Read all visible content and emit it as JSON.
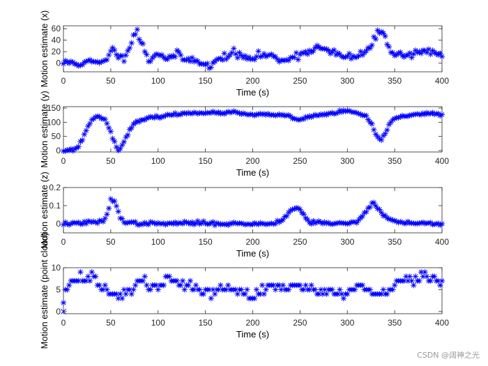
{
  "watermark": "CSDN @阔神之光",
  "colors": {
    "marker": "#0000ff",
    "axis": "#262626",
    "background": "#ffffff"
  },
  "chart_data": [
    {
      "type": "scatter",
      "marker": "asterisk",
      "xlabel": "Time (s)",
      "ylabel": "Motion estimate (x)",
      "xlim": [
        0,
        400
      ],
      "ylim": [
        -15,
        65
      ],
      "xticks": [
        0,
        50,
        100,
        150,
        200,
        250,
        300,
        350,
        400
      ],
      "yticks": [
        0,
        20,
        40,
        60
      ],
      "grid": false,
      "keypoints": [
        [
          0,
          0
        ],
        [
          10,
          2
        ],
        [
          20,
          -2
        ],
        [
          30,
          3
        ],
        [
          40,
          -1
        ],
        [
          45,
          5
        ],
        [
          50,
          25
        ],
        [
          55,
          20
        ],
        [
          60,
          8
        ],
        [
          65,
          12
        ],
        [
          70,
          32
        ],
        [
          75,
          50
        ],
        [
          78,
          58
        ],
        [
          80,
          45
        ],
        [
          85,
          25
        ],
        [
          90,
          5
        ],
        [
          95,
          12
        ],
        [
          100,
          18
        ],
        [
          110,
          8
        ],
        [
          120,
          15
        ],
        [
          130,
          5
        ],
        [
          140,
          8
        ],
        [
          150,
          -3
        ],
        [
          155,
          -8
        ],
        [
          160,
          2
        ],
        [
          170,
          12
        ],
        [
          180,
          18
        ],
        [
          190,
          10
        ],
        [
          200,
          8
        ],
        [
          210,
          15
        ],
        [
          220,
          12
        ],
        [
          230,
          5
        ],
        [
          240,
          10
        ],
        [
          250,
          15
        ],
        [
          260,
          22
        ],
        [
          270,
          28
        ],
        [
          280,
          20
        ],
        [
          290,
          15
        ],
        [
          300,
          10
        ],
        [
          310,
          12
        ],
        [
          320,
          20
        ],
        [
          325,
          30
        ],
        [
          330,
          45
        ],
        [
          335,
          58
        ],
        [
          340,
          45
        ],
        [
          345,
          25
        ],
        [
          350,
          18
        ],
        [
          360,
          12
        ],
        [
          370,
          18
        ],
        [
          380,
          22
        ],
        [
          390,
          18
        ],
        [
          400,
          15
        ]
      ],
      "noise": 7,
      "seed": 11
    },
    {
      "type": "scatter",
      "marker": "asterisk",
      "xlabel": "Time (s)",
      "ylabel": "Motion estimate (y)",
      "xlim": [
        0,
        400
      ],
      "ylim": [
        -5,
        155
      ],
      "xticks": [
        0,
        50,
        100,
        150,
        200,
        250,
        300,
        350,
        400
      ],
      "yticks": [
        0,
        50,
        100,
        150
      ],
      "grid": false,
      "keypoints": [
        [
          0,
          0
        ],
        [
          10,
          3
        ],
        [
          15,
          10
        ],
        [
          20,
          40
        ],
        [
          25,
          80
        ],
        [
          30,
          110
        ],
        [
          35,
          118
        ],
        [
          40,
          118
        ],
        [
          45,
          108
        ],
        [
          50,
          65
        ],
        [
          55,
          20
        ],
        [
          58,
          3
        ],
        [
          62,
          15
        ],
        [
          65,
          40
        ],
        [
          70,
          75
        ],
        [
          75,
          95
        ],
        [
          85,
          110
        ],
        [
          100,
          120
        ],
        [
          120,
          128
        ],
        [
          140,
          135
        ],
        [
          160,
          132
        ],
        [
          180,
          135
        ],
        [
          200,
          125
        ],
        [
          220,
          128
        ],
        [
          240,
          120
        ],
        [
          245,
          110
        ],
        [
          250,
          108
        ],
        [
          260,
          120
        ],
        [
          280,
          130
        ],
        [
          300,
          140
        ],
        [
          310,
          132
        ],
        [
          320,
          120
        ],
        [
          325,
          95
        ],
        [
          330,
          55
        ],
        [
          335,
          35
        ],
        [
          340,
          60
        ],
        [
          345,
          100
        ],
        [
          355,
          120
        ],
        [
          370,
          128
        ],
        [
          385,
          130
        ],
        [
          400,
          128
        ]
      ],
      "noise": 5,
      "seed": 23
    },
    {
      "type": "scatter",
      "marker": "asterisk",
      "xlabel": "Time (s)",
      "ylabel": "Motion estimate (z)",
      "xlim": [
        0,
        400
      ],
      "ylim": [
        -0.05,
        0.2
      ],
      "xticks": [
        0,
        50,
        100,
        150,
        200,
        250,
        300,
        350,
        400
      ],
      "yticks": [
        0,
        0.1,
        0.2
      ],
      "grid": false,
      "keypoints": [
        [
          0,
          0
        ],
        [
          20,
          0.005
        ],
        [
          40,
          0.01
        ],
        [
          45,
          0.03
        ],
        [
          50,
          0.13
        ],
        [
          55,
          0.12
        ],
        [
          60,
          0.04
        ],
        [
          65,
          0.005
        ],
        [
          100,
          0.0
        ],
        [
          140,
          0.005
        ],
        [
          180,
          0.0
        ],
        [
          200,
          0.0
        ],
        [
          220,
          0.0
        ],
        [
          230,
          0.02
        ],
        [
          240,
          0.07
        ],
        [
          245,
          0.09
        ],
        [
          250,
          0.08
        ],
        [
          255,
          0.04
        ],
        [
          260,
          0.01
        ],
        [
          300,
          0.0
        ],
        [
          310,
          0.01
        ],
        [
          320,
          0.07
        ],
        [
          328,
          0.12
        ],
        [
          335,
          0.07
        ],
        [
          345,
          0.02
        ],
        [
          360,
          0.005
        ],
        [
          400,
          0.0
        ]
      ],
      "noise": 0.01,
      "seed": 37
    },
    {
      "type": "scatter",
      "marker": "asterisk",
      "xlabel": "Time (s)",
      "ylabel": "Motion estimate (point cloud)",
      "xlim": [
        0,
        400
      ],
      "ylim": [
        -0.5,
        10
      ],
      "xticks": [
        0,
        50,
        100,
        150,
        200,
        250,
        300,
        350,
        400
      ],
      "yticks": [
        0,
        5,
        10
      ],
      "grid": false,
      "keypoints": [
        [
          0,
          3
        ],
        [
          5,
          6
        ],
        [
          20,
          7
        ],
        [
          30,
          8
        ],
        [
          40,
          6
        ],
        [
          50,
          4
        ],
        [
          60,
          4
        ],
        [
          70,
          5
        ],
        [
          80,
          7
        ],
        [
          90,
          6
        ],
        [
          100,
          5
        ],
        [
          110,
          8
        ],
        [
          120,
          7
        ],
        [
          130,
          6
        ],
        [
          140,
          5
        ],
        [
          150,
          5
        ],
        [
          160,
          4
        ],
        [
          170,
          6
        ],
        [
          180,
          5
        ],
        [
          190,
          4
        ],
        [
          200,
          3
        ],
        [
          210,
          5
        ],
        [
          220,
          6
        ],
        [
          230,
          5
        ],
        [
          240,
          6
        ],
        [
          250,
          6
        ],
        [
          260,
          5
        ],
        [
          270,
          4
        ],
        [
          280,
          5
        ],
        [
          290,
          4
        ],
        [
          300,
          4
        ],
        [
          310,
          6
        ],
        [
          320,
          5
        ],
        [
          330,
          4
        ],
        [
          340,
          4
        ],
        [
          350,
          6
        ],
        [
          360,
          7
        ],
        [
          370,
          7
        ],
        [
          380,
          8
        ],
        [
          390,
          7
        ],
        [
          400,
          7
        ]
      ],
      "noise": 1.1,
      "seed": 59,
      "quantize": 1,
      "special_points": [
        [
          0,
          0
        ]
      ]
    }
  ]
}
